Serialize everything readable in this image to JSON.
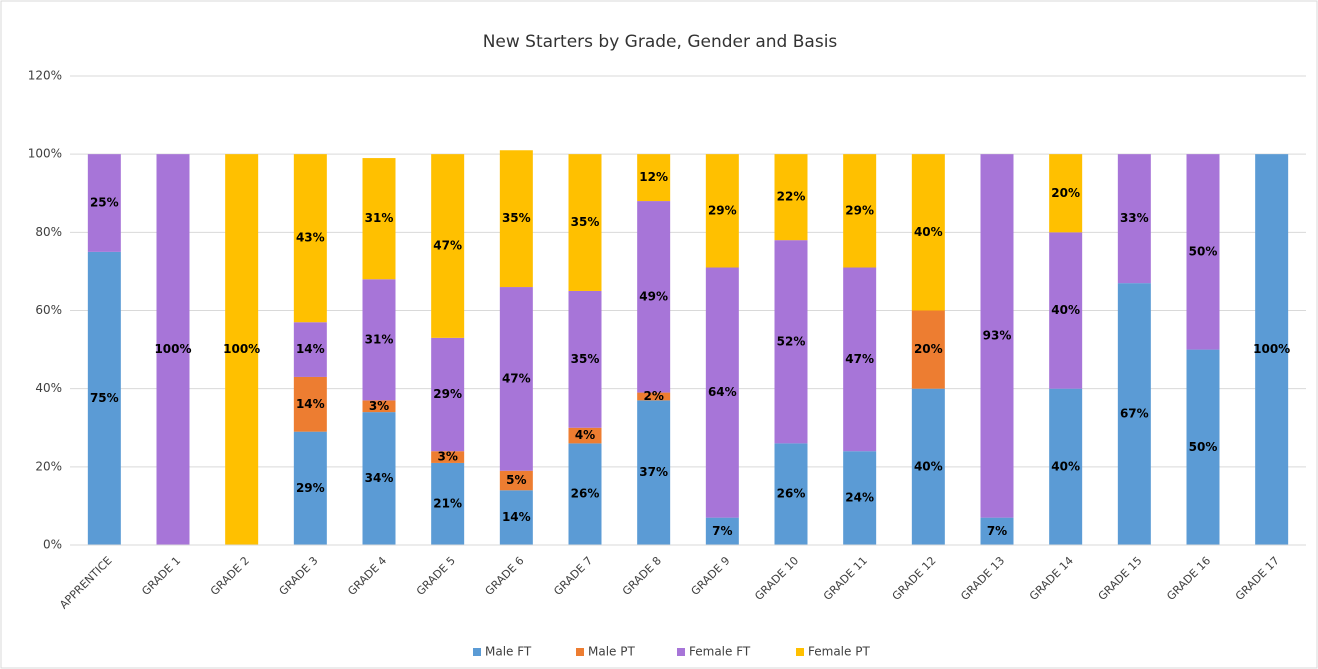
{
  "chart_data": {
    "type": "stacked_bar",
    "title": "New Starters by Grade, Gender and Basis",
    "categories": [
      "APPRENTICE",
      "GRADE 1",
      "GRADE 2",
      "GRADE 3",
      "GRADE 4",
      "GRADE 5",
      "GRADE 6",
      "GRADE 7",
      "GRADE 8",
      "GRADE 9",
      "GRADE 10",
      "GRADE 11",
      "GRADE 12",
      "GRADE 13",
      "GRADE 14",
      "GRADE 15",
      "GRADE 16",
      "GRADE 17"
    ],
    "series": [
      {
        "name": "Male FT",
        "color": "#5b9bd5",
        "values": [
          75,
          0,
          0,
          29,
          34,
          21,
          14,
          26,
          37,
          7,
          26,
          24,
          40,
          7,
          40,
          67,
          50,
          100
        ],
        "value_labels": [
          "75%",
          null,
          null,
          "29%",
          "34%",
          "21%",
          "14%",
          "26%",
          "37%",
          "7%",
          "26%",
          "24%",
          "40%",
          "7%",
          "40%",
          "67%",
          "50%",
          "100%"
        ]
      },
      {
        "name": "Male PT",
        "color": "#ed7d31",
        "values": [
          0,
          0,
          0,
          14,
          3,
          3,
          5,
          4,
          2,
          0,
          0,
          0,
          20,
          0,
          0,
          0,
          0,
          0
        ],
        "value_labels": [
          null,
          null,
          null,
          "14%",
          "3%",
          "3%",
          "5%",
          "4%",
          "2%",
          null,
          null,
          null,
          "20%",
          null,
          null,
          null,
          null,
          null
        ]
      },
      {
        "name": "Female FT",
        "color": "#a775d8",
        "values": [
          25,
          100,
          0,
          14,
          31,
          29,
          47,
          35,
          49,
          64,
          52,
          47,
          0,
          93,
          40,
          33,
          50,
          0
        ],
        "value_labels": [
          "25%",
          "100%",
          null,
          "14%",
          "31%",
          "29%",
          "47%",
          "35%",
          "49%",
          "64%",
          "52%",
          "47%",
          null,
          "93%",
          "40%",
          "33%",
          "50%",
          null
        ]
      },
      {
        "name": "Female PT",
        "color": "#ffc000",
        "values": [
          0,
          0,
          100,
          43,
          31,
          47,
          35,
          35,
          12,
          29,
          22,
          29,
          40,
          0,
          20,
          0,
          0,
          0
        ],
        "value_labels": [
          null,
          null,
          "100%",
          "43%",
          "31%",
          "47%",
          "35%",
          "35%",
          "12%",
          "29%",
          "22%",
          "29%",
          "40%",
          null,
          "20%",
          null,
          null,
          null
        ]
      }
    ],
    "ylim": [
      0,
      120
    ],
    "yticks": [
      {
        "value": 0,
        "label": "0%"
      },
      {
        "value": 20,
        "label": "20%"
      },
      {
        "value": 40,
        "label": "40%"
      },
      {
        "value": 60,
        "label": "60%"
      },
      {
        "value": 80,
        "label": "80%"
      },
      {
        "value": 100,
        "label": "100%"
      },
      {
        "value": 120,
        "label": "120%"
      }
    ],
    "grid": true,
    "legend": "bottom"
  }
}
